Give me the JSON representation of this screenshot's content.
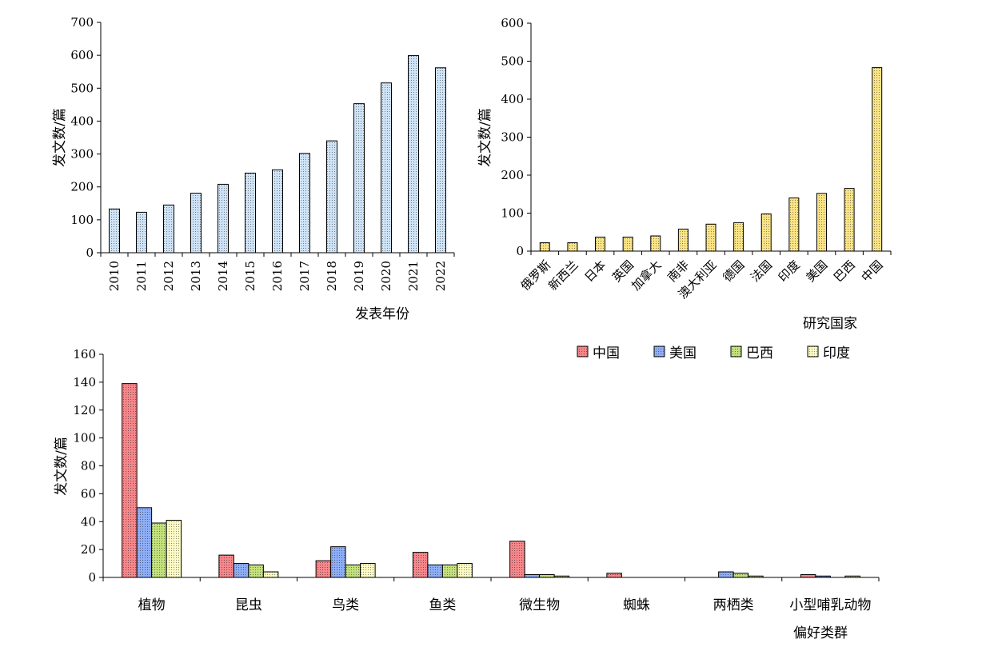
{
  "chart_data": [
    {
      "type": "bar",
      "categories": [
        "2010",
        "2011",
        "2012",
        "2013",
        "2014",
        "2015",
        "2016",
        "2017",
        "2018",
        "2019",
        "2020",
        "2021",
        "2022"
      ],
      "values": [
        133,
        123,
        145,
        181,
        208,
        242,
        252,
        302,
        340,
        453,
        516,
        599,
        562
      ],
      "xlabel": "发表年份",
      "ylabel": "发文数/篇",
      "ylim": [
        0,
        700
      ],
      "yticks": [
        0,
        100,
        200,
        300,
        400,
        500,
        600,
        700
      ],
      "color": "#cfe3f7"
    },
    {
      "type": "bar",
      "categories": [
        "俄罗斯",
        "新西兰",
        "日本",
        "英国",
        "加拿大",
        "南非",
        "澳大利亚",
        "德国",
        "法国",
        "印度",
        "美国",
        "巴西",
        "中国"
      ],
      "values": [
        22,
        22,
        37,
        37,
        40,
        58,
        71,
        75,
        98,
        140,
        152,
        165,
        483
      ],
      "xlabel": "研究国家",
      "ylabel": "发文数/篇",
      "ylim": [
        0,
        600
      ],
      "yticks": [
        0,
        100,
        200,
        300,
        400,
        500,
        600
      ],
      "color": "#fbe486"
    },
    {
      "type": "bar",
      "categories": [
        "植物",
        "昆虫",
        "鸟类",
        "鱼类",
        "微生物",
        "蜘蛛",
        "两栖类",
        "小型哺乳动物"
      ],
      "series": [
        {
          "name": "中国",
          "color": "#f6868a",
          "values": [
            139,
            16,
            12,
            18,
            26,
            3,
            0,
            2
          ]
        },
        {
          "name": "美国",
          "color": "#8eaef7",
          "values": [
            50,
            10,
            22,
            9,
            2,
            0,
            4,
            1
          ]
        },
        {
          "name": "巴西",
          "color": "#c3e17c",
          "values": [
            39,
            9,
            9,
            9,
            2,
            0,
            3,
            0
          ]
        },
        {
          "name": "印度",
          "color": "#fdfbc4",
          "values": [
            41,
            4,
            10,
            10,
            1,
            0,
            1,
            1
          ]
        }
      ],
      "xlabel": "偏好类群",
      "ylabel": "发文数/篇",
      "ylim": [
        0,
        160
      ],
      "yticks": [
        0,
        20,
        40,
        60,
        80,
        100,
        120,
        140,
        160
      ],
      "legend": "top-right"
    }
  ]
}
